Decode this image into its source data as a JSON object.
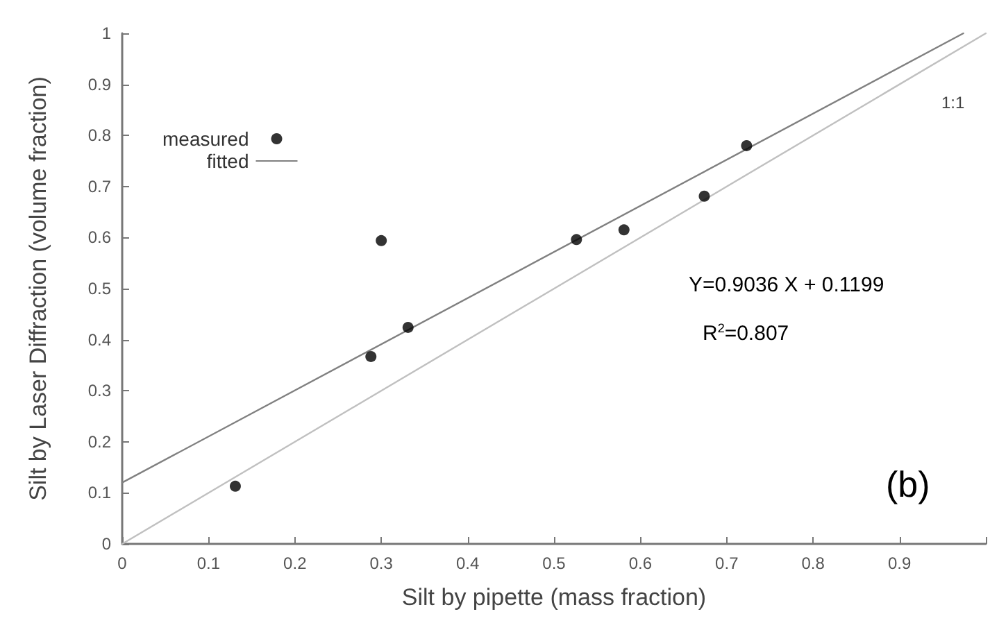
{
  "chart_data": {
    "type": "scatter",
    "xlabel": "Silt by pipette (mass fraction)",
    "ylabel": "Silt by Laser Diffraction (volume fraction)",
    "x": [
      0.131,
      0.288,
      0.3,
      0.331,
      0.526,
      0.581,
      0.674,
      0.723
    ],
    "series": [
      {
        "name": "measured",
        "marker": "circle",
        "color": "#000000",
        "values": [
          0.113,
          0.367,
          0.594,
          0.424,
          0.596,
          0.615,
          0.681,
          0.78
        ]
      },
      {
        "name": "fitted",
        "type": "line",
        "color": "#808080",
        "x": [
          0,
          0.974
        ],
        "values": [
          0.12,
          1.0
        ]
      },
      {
        "name": "1:1",
        "type": "line",
        "color": "#c0c0c0",
        "x": [
          0,
          1
        ],
        "values": [
          0,
          1
        ]
      }
    ],
    "xlim": [
      0,
      1
    ],
    "ylim": [
      0,
      1
    ],
    "xticks": [
      0,
      0.1,
      0.2,
      0.3,
      0.4,
      0.5,
      0.6,
      0.7,
      0.8,
      0.9,
      {
        "value": 1,
        "label": null
      }
    ],
    "yticks": [
      0,
      0.1,
      0.2,
      0.3,
      0.4,
      0.5,
      0.6,
      0.7,
      0.8,
      0.9,
      1
    ],
    "annotations": [
      "Y=0.9036 X + 0.1199",
      "R$^{2}$=0.807",
      "(b)"
    ],
    "legend": "top left",
    "grid": false
  }
}
